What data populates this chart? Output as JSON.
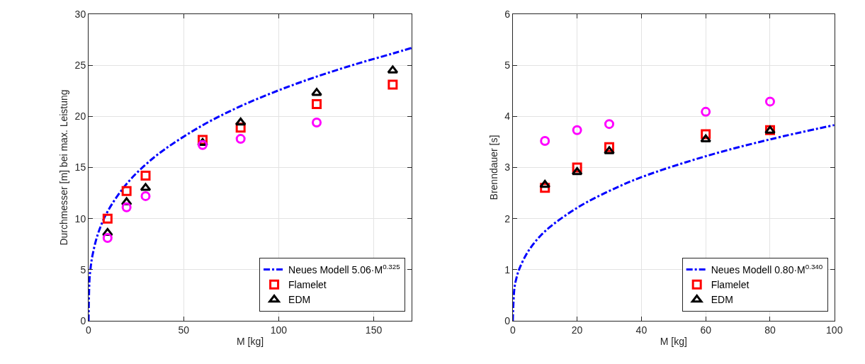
{
  "chart_data": [
    {
      "type": "scatter",
      "xlabel": "M [kg]",
      "ylabel": "Durchmesser [m] bei max. Leistung",
      "xlim": [
        0,
        170
      ],
      "ylim": [
        0,
        30
      ],
      "xticks": [
        0,
        50,
        100,
        150
      ],
      "yticks": [
        0,
        5,
        10,
        15,
        20,
        25,
        30
      ],
      "grid": true,
      "legend": "bottom right",
      "series": [
        {
          "name": "Neues Modell 5.06·M$^{0.325}$",
          "type": "line",
          "line_style": "dashdot",
          "marker": "none",
          "color": "#0000ff",
          "x": [
            0,
            0.5,
            1,
            2,
            5,
            10,
            20,
            30,
            40,
            60,
            80,
            100,
            120,
            140,
            160,
            170
          ],
          "values": [
            0,
            4.04,
            5.06,
            6.34,
            8.54,
            10.69,
            13.39,
            15.28,
            16.77,
            19.13,
            21.0,
            22.55,
            23.89,
            25.08,
            26.15,
            26.7
          ]
        },
        {
          "name": "Flamelet",
          "color": "#ff0000",
          "marker": "square",
          "x": [
            10,
            20,
            30,
            60,
            80,
            120,
            160
          ],
          "values": [
            10.0,
            12.7,
            14.2,
            17.7,
            18.9,
            21.2,
            23.1
          ]
        },
        {
          "name": "EDM",
          "color": "#000000",
          "marker": "triangle",
          "x": [
            10,
            20,
            30,
            60,
            80,
            120,
            160
          ],
          "values": [
            8.6,
            11.6,
            13.0,
            17.4,
            19.4,
            22.3,
            24.5
          ]
        },
        {
          "color": "#ff00ff",
          "marker": "circle",
          "x": [
            10,
            20,
            30,
            60,
            80,
            120
          ],
          "values": [
            8.1,
            11.1,
            12.2,
            17.2,
            17.8,
            19.4
          ]
        }
      ]
    },
    {
      "type": "scatter",
      "xlabel": "M [kg]",
      "ylabel": "Brenndauer [s]",
      "xlim": [
        0,
        100
      ],
      "ylim": [
        0,
        6
      ],
      "xticks": [
        0,
        20,
        40,
        60,
        80,
        100
      ],
      "yticks": [
        0,
        1,
        2,
        3,
        4,
        5,
        6
      ],
      "grid": true,
      "legend": "bottom right",
      "series": [
        {
          "name": "Neues Modell 0.80·M$^{0.340}$",
          "type": "line",
          "line_style": "dashdot",
          "marker": "none",
          "color": "#0000ff",
          "x": [
            0,
            0.5,
            1,
            2,
            5,
            10,
            20,
            30,
            40,
            60,
            80,
            100
          ],
          "values": [
            0,
            0.63,
            0.8,
            1.01,
            1.38,
            1.75,
            2.21,
            2.54,
            2.81,
            3.22,
            3.55,
            3.83
          ]
        },
        {
          "name": "Flamelet",
          "color": "#ff0000",
          "marker": "square",
          "x": [
            10,
            20,
            30,
            60,
            80
          ],
          "values": [
            2.6,
            3.0,
            3.4,
            3.65,
            3.73
          ]
        },
        {
          "name": "EDM",
          "color": "#000000",
          "marker": "triangle",
          "x": [
            10,
            20,
            30,
            60,
            80
          ],
          "values": [
            2.66,
            2.91,
            3.32,
            3.55,
            3.72
          ]
        },
        {
          "color": "#ff00ff",
          "marker": "circle",
          "x": [
            10,
            20,
            30,
            60,
            80
          ],
          "values": [
            3.52,
            3.73,
            3.85,
            4.09,
            4.29
          ]
        }
      ]
    }
  ]
}
